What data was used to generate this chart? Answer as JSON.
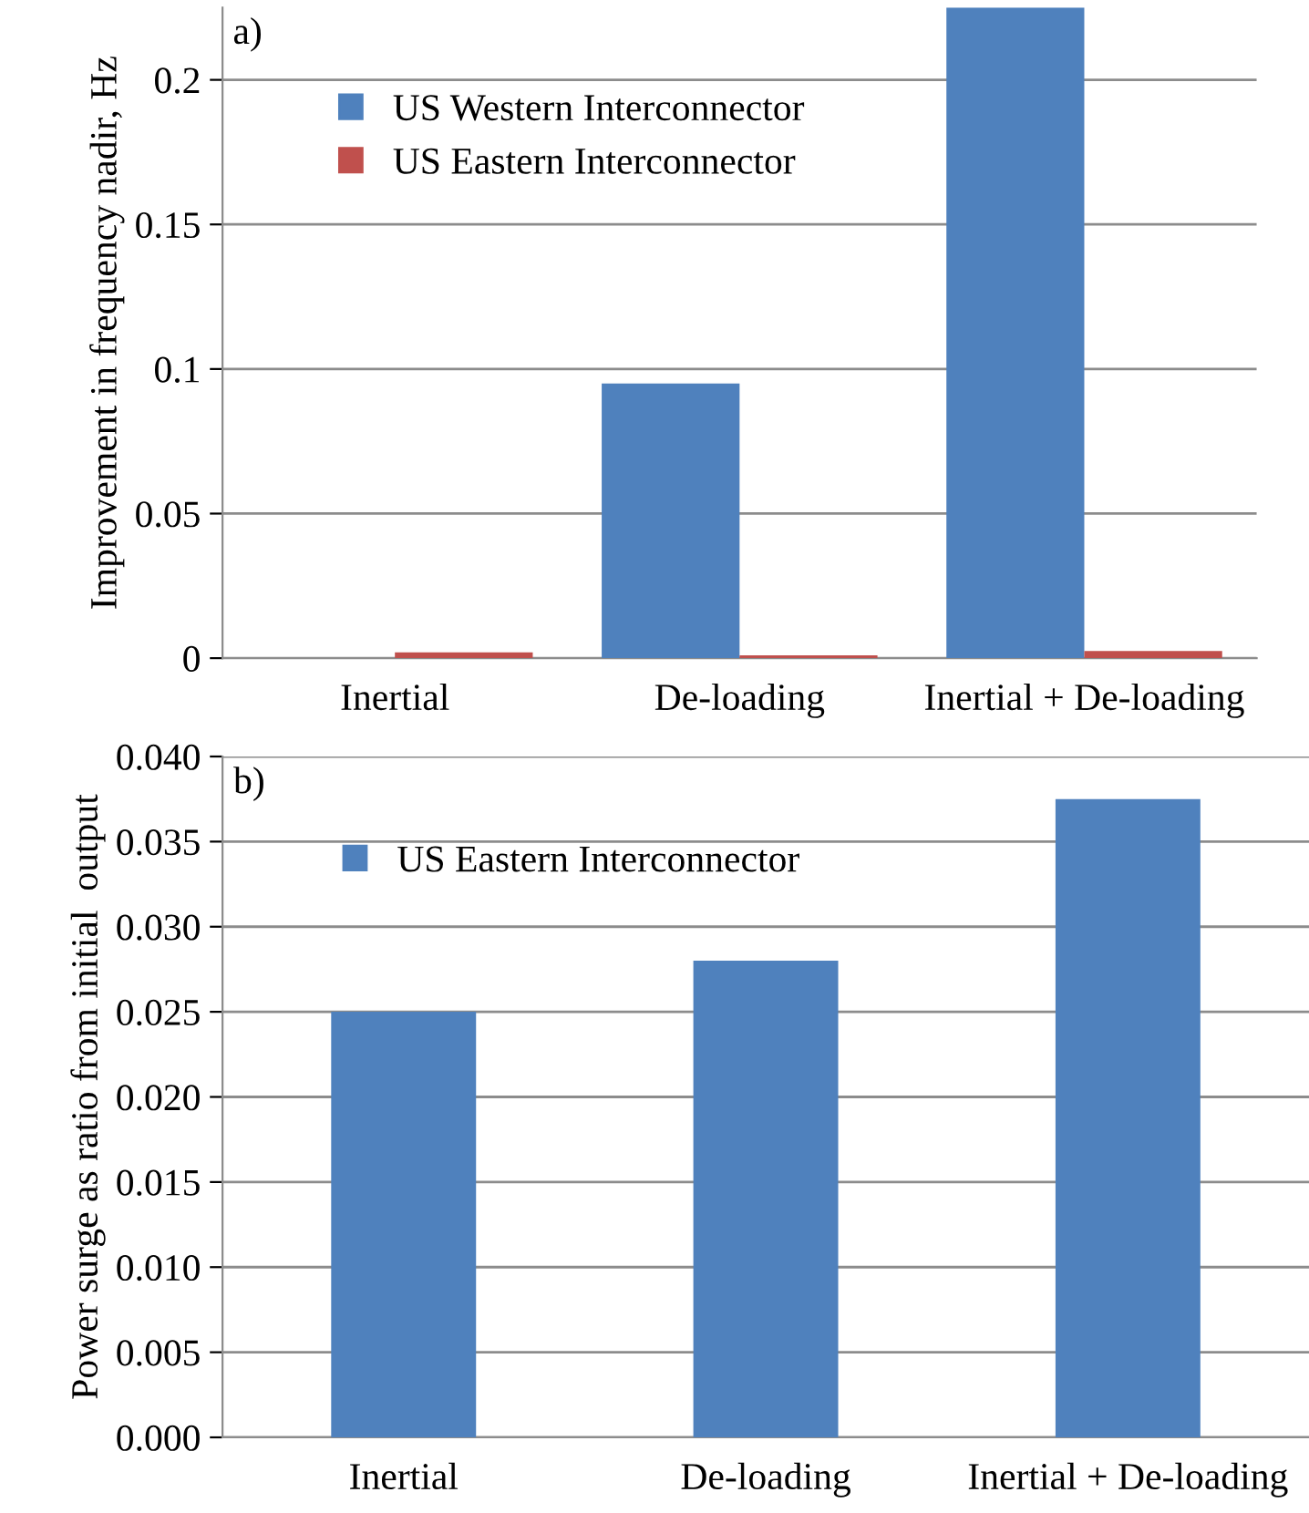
{
  "chart_data": [
    {
      "type": "bar",
      "ylabel": "Improvement in frequency nadir, Hz",
      "annotations": [
        "a)"
      ],
      "categories": [
        "Inertial",
        "De-loading",
        "Inertial + De-loading"
      ],
      "series": [
        {
          "name": "US Western Interconnector",
          "color": "#4f81bd",
          "values": [
            0,
            0.095,
            0.225
          ]
        },
        {
          "name": "US Eastern Interconnector",
          "color": "#c0504d",
          "values": [
            0.002,
            0.001,
            0.0025
          ]
        }
      ],
      "ylim": [
        0,
        0.225
      ],
      "yticks": [
        0,
        0.05,
        0.1,
        0.15,
        0.2
      ],
      "grid": "y",
      "legend": "top left"
    },
    {
      "type": "bar",
      "ylabel": "Power surge as ratio from initial  output",
      "annotations": [
        "b)"
      ],
      "categories": [
        "Inertial",
        "De-loading",
        "Inertial + De-loading"
      ],
      "series": [
        {
          "name": "US Eastern Interconnector",
          "color": "#4f81bd",
          "values": [
            0.025,
            0.028,
            0.0375
          ]
        }
      ],
      "ylim": [
        0,
        0.04
      ],
      "yticks": [
        {
          "value": 0,
          "label": "0.000"
        },
        {
          "value": 0.005,
          "label": "0.005"
        },
        {
          "value": 0.01,
          "label": "0.010"
        },
        {
          "value": 0.015,
          "label": "0.015"
        },
        {
          "value": 0.02,
          "label": "0.020"
        },
        {
          "value": 0.025,
          "label": "0.025"
        },
        {
          "value": 0.03,
          "label": "0.030"
        },
        {
          "value": 0.035,
          "label": "0.035"
        },
        {
          "value": 0.04,
          "label": "0.040"
        }
      ],
      "grid": "y",
      "legend": "top left"
    }
  ]
}
